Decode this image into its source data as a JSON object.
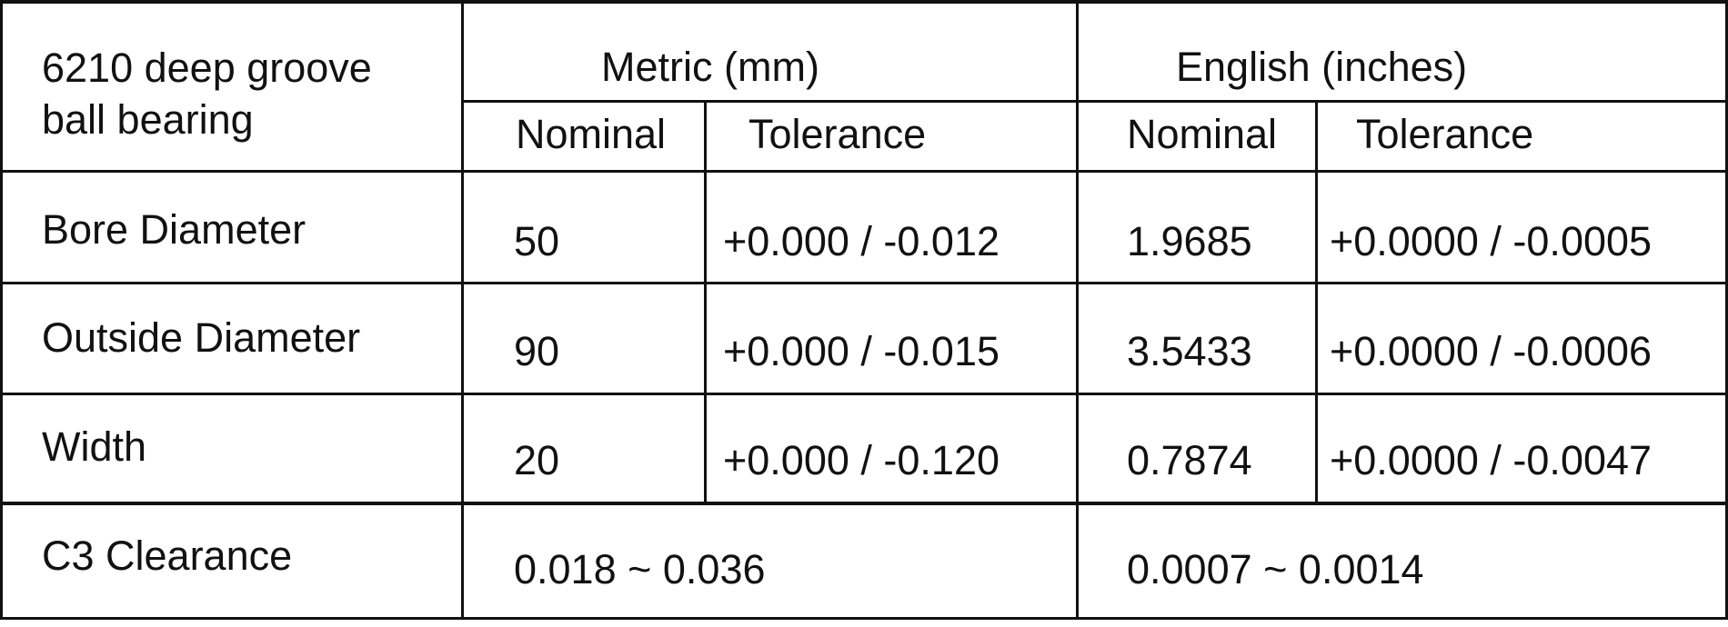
{
  "table": {
    "corner_title": [
      "6210 deep groove",
      "ball bearing"
    ],
    "groups": [
      {
        "label": "Metric (mm)"
      },
      {
        "label": "English (inches)"
      }
    ],
    "subheaders": [
      "Nominal",
      "Tolerance",
      "Nominal",
      "Tolerance"
    ],
    "rows": [
      {
        "label": "Bore Diameter",
        "metric_nominal": "50",
        "metric_tolerance": "+0.000 / -0.012",
        "english_nominal": "1.9685",
        "english_tolerance": "+0.0000 / -0.0005"
      },
      {
        "label": "Outside Diameter",
        "metric_nominal": "90",
        "metric_tolerance": "+0.000 / -0.015",
        "english_nominal": "3.5433",
        "english_tolerance": "+0.0000 / -0.0006"
      },
      {
        "label": "Width",
        "metric_nominal": "20",
        "metric_tolerance": "+0.000 / -0.120",
        "english_nominal": "0.7874",
        "english_tolerance": "+0.0000 / -0.0047"
      }
    ],
    "clearance": {
      "label": "C3 Clearance",
      "metric": "0.018 ~ 0.036",
      "english": "0.0007 ~ 0.0014"
    }
  }
}
